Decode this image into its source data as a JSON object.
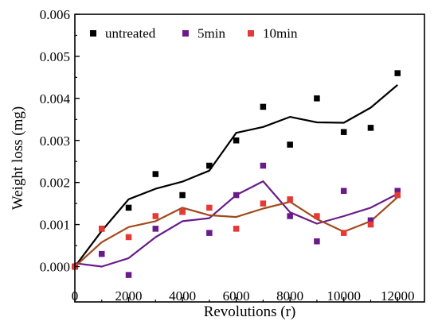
{
  "chart_data": {
    "type": "scatter",
    "title": "",
    "xlabel": "Revolutions (r)",
    "ylabel": "Weight loss (mg)",
    "xlim": [
      0,
      13000
    ],
    "ylim": [
      -0.0003,
      0.006
    ],
    "x_ticks": [
      0,
      2000,
      4000,
      6000,
      8000,
      10000,
      12000
    ],
    "x_tick_labels": [
      "0",
      "2000",
      "4000",
      "6000",
      "8000",
      "10000",
      "12000"
    ],
    "y_ticks": [
      0.0,
      0.001,
      0.002,
      0.003,
      0.004,
      0.005,
      0.006
    ],
    "y_tick_labels": [
      "0.000",
      "0.001",
      "0.002",
      "0.003",
      "0.004",
      "0.005",
      "0.006"
    ],
    "grid": false,
    "legend_position": "top-left",
    "series": [
      {
        "name": "untreated",
        "color": "#000000",
        "x": [
          0,
          1000,
          2000,
          3000,
          4000,
          5000,
          6000,
          7000,
          8000,
          9000,
          10000,
          11000,
          12000
        ],
        "values": [
          0.0,
          0.0009,
          0.0014,
          0.0022,
          0.0017,
          0.0024,
          0.003,
          0.0038,
          0.0029,
          0.004,
          0.0032,
          0.0033,
          0.0046
        ],
        "fit": [
          0.0,
          0.00085,
          0.0016,
          0.00185,
          0.00202,
          0.00228,
          0.00318,
          0.00332,
          0.00356,
          0.00343,
          0.00342,
          0.00378,
          0.00432
        ]
      },
      {
        "name": "5min",
        "color": "#6a1b8a",
        "x": [
          0,
          1000,
          2000,
          3000,
          4000,
          5000,
          6000,
          7000,
          8000,
          9000,
          10000,
          11000,
          12000
        ],
        "values": [
          0.0,
          0.0003,
          -0.0002,
          0.0009,
          0.0013,
          0.0008,
          0.0017,
          0.0024,
          0.0012,
          0.0006,
          0.0018,
          0.0011,
          0.0018
        ],
        "fit": [
          8e-05,
          0.0,
          0.0002,
          0.0007,
          0.00108,
          0.00115,
          0.0017,
          0.00203,
          0.00129,
          0.00102,
          0.0012,
          0.0014,
          0.00173
        ]
      },
      {
        "name": "10min",
        "color": "#e53935",
        "fit_color": "#a04a1c",
        "x": [
          0,
          1000,
          2000,
          3000,
          4000,
          5000,
          6000,
          7000,
          8000,
          9000,
          10000,
          11000,
          12000
        ],
        "values": [
          0.0,
          0.0009,
          0.0007,
          0.0012,
          0.0013,
          0.0014,
          0.0009,
          0.0015,
          0.0016,
          0.0012,
          0.0008,
          0.001,
          0.0017
        ],
        "fit": [
          0.0,
          0.00058,
          0.00094,
          0.00108,
          0.0014,
          0.00122,
          0.00118,
          0.00138,
          0.00154,
          0.00113,
          0.00083,
          0.00108,
          0.00165
        ]
      }
    ]
  }
}
